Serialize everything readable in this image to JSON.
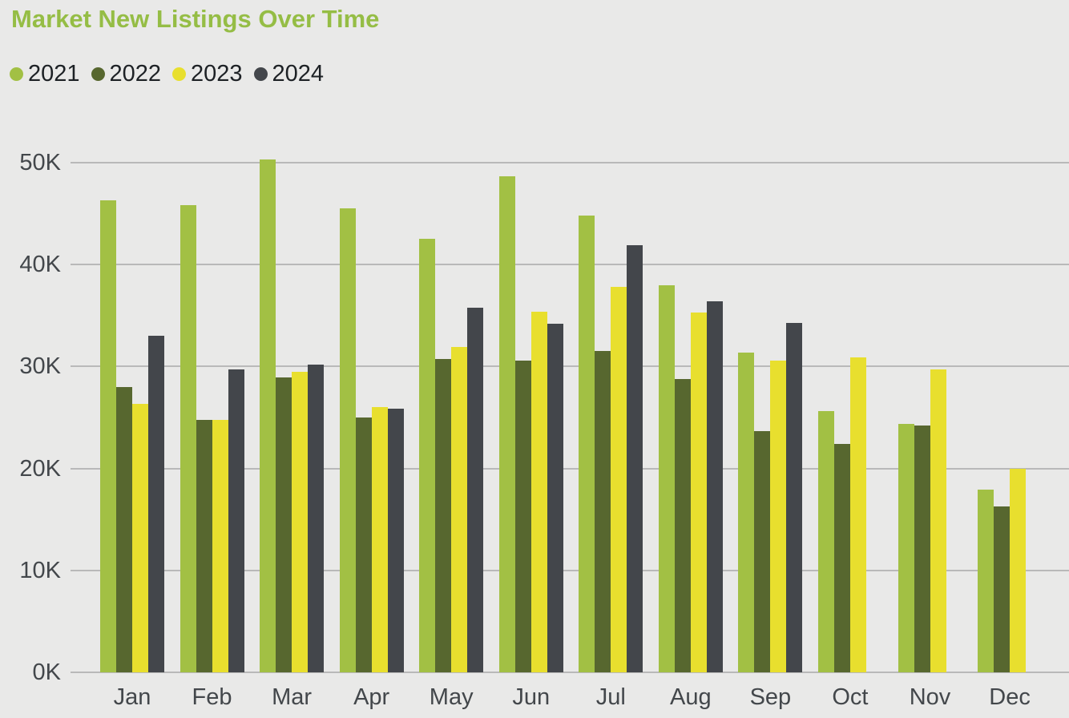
{
  "chart_data": {
    "type": "bar",
    "title": "Market New Listings Over Time",
    "unit": "thousands of listings",
    "categories": [
      "Jan",
      "Feb",
      "Mar",
      "Apr",
      "May",
      "Jun",
      "Jul",
      "Aug",
      "Sep",
      "Oct",
      "Nov",
      "Dec"
    ],
    "series": [
      {
        "name": "2021",
        "color": "#a2c044",
        "values_k": [
          46.3,
          45.8,
          50.3,
          45.5,
          42.5,
          48.7,
          44.8,
          38.0,
          31.4,
          25.6,
          24.4,
          17.9
        ]
      },
      {
        "name": "2022",
        "color": "#57672f",
        "values_k": [
          28.0,
          24.8,
          28.9,
          25.0,
          30.7,
          30.6,
          31.5,
          28.8,
          23.7,
          22.4,
          24.2,
          16.3
        ]
      },
      {
        "name": "2023",
        "color": "#e8df2e",
        "values_k": [
          26.3,
          24.8,
          29.5,
          26.0,
          31.9,
          35.4,
          37.8,
          35.3,
          30.6,
          30.9,
          29.7,
          20.0
        ]
      },
      {
        "name": "2024",
        "color": "#43464b",
        "values_k": [
          33.0,
          29.7,
          30.2,
          25.9,
          35.8,
          34.2,
          41.9,
          36.4,
          34.3,
          null,
          null,
          null
        ]
      }
    ],
    "y_ticks": [
      "0K",
      "10K",
      "20K",
      "30K",
      "40K",
      "50K"
    ],
    "ylim": [
      0,
      50
    ],
    "xlabel": "",
    "ylabel": "",
    "grid": "horizontal",
    "legend_position": "top-left",
    "colors": {
      "background": "#e9e9e8",
      "title": "#95bd45",
      "gridline": "#b9b9b9",
      "axis_text": "#43474b",
      "legend_text": "#1d2125"
    }
  }
}
